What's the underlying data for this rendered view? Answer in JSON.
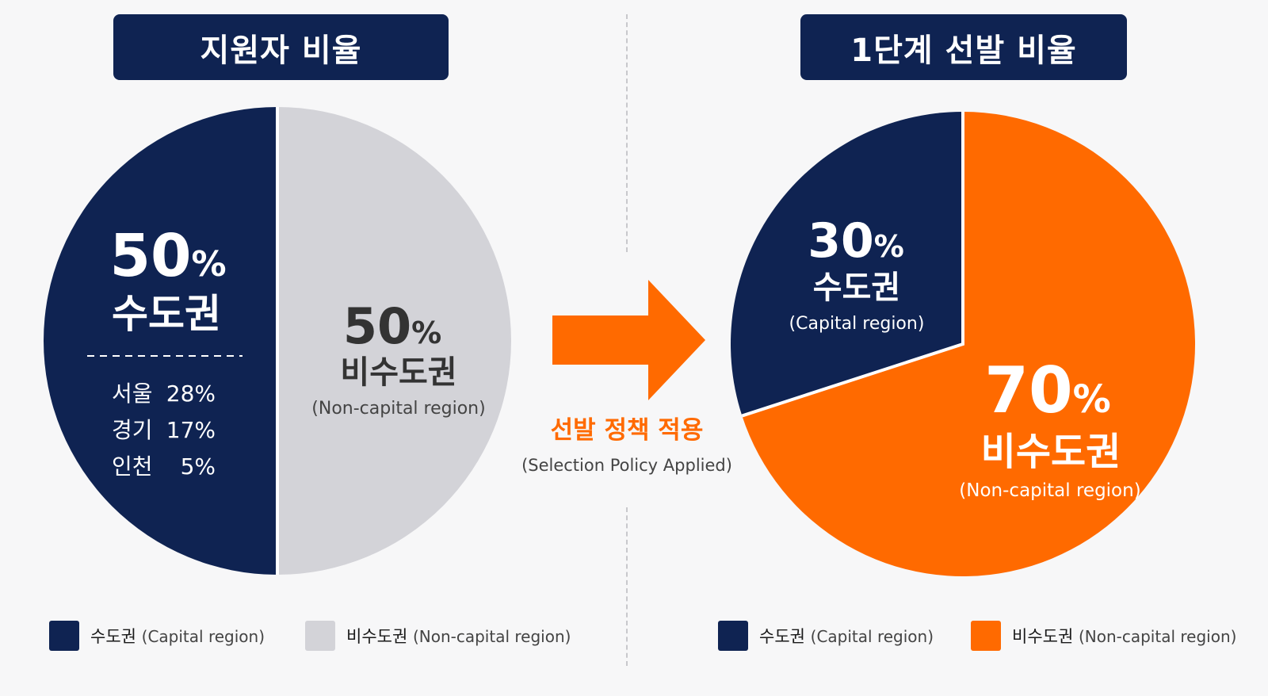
{
  "colors": {
    "navy": "#0f2352",
    "light_gray": "#d3d3d8",
    "orange": "#ff6a00",
    "white": "#ffffff",
    "dark_text": "#333333"
  },
  "arrow": {
    "label_ko": "선발 정책 적용",
    "label_en": "(Selection Policy Applied)"
  },
  "chart_data": [
    {
      "type": "pie",
      "title": "지원자 비율",
      "slices": [
        {
          "name": "수도권",
          "name_en": "",
          "value": 50,
          "label": "50%",
          "breakdown": [
            {
              "region": "서울",
              "value": 28,
              "label": "28%"
            },
            {
              "region": "경기",
              "value": 17,
              "label": "17%"
            },
            {
              "region": "인천",
              "value": 5,
              "label": "5%"
            }
          ]
        },
        {
          "name": "비수도권",
          "name_en": "(Non-capital region)",
          "value": 50,
          "label": "50%"
        }
      ],
      "legend": [
        {
          "ko": "수도권",
          "en": "(Capital region)"
        },
        {
          "ko": "비수도권",
          "en": "(Non-capital region)"
        }
      ]
    },
    {
      "type": "pie",
      "title": "1단계 선발 비율",
      "slices": [
        {
          "name": "수도권",
          "name_en": "(Capital region)",
          "value": 30,
          "label": "30%"
        },
        {
          "name": "비수도권",
          "name_en": "(Non-capital region)",
          "value": 70,
          "label": "70%"
        }
      ],
      "legend": [
        {
          "ko": "수도권",
          "en": "(Capital region)"
        },
        {
          "ko": "비수도권",
          "en": "(Non-capital region)"
        }
      ]
    }
  ]
}
